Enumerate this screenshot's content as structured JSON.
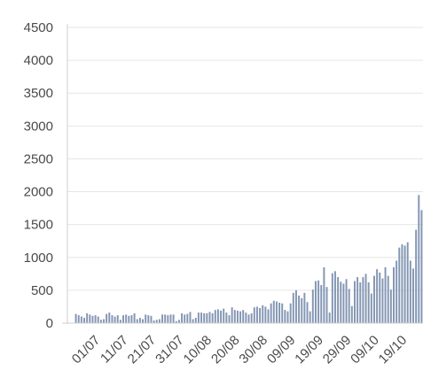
{
  "chart_data": {
    "type": "bar",
    "title": "",
    "xlabel": "",
    "ylabel": "",
    "ylim": [
      0,
      4500
    ],
    "yticks": [
      0,
      500,
      1000,
      1500,
      2000,
      2500,
      3000,
      3500,
      4000,
      4500
    ],
    "grid": "horizontal",
    "legend": "none",
    "bar_color": "#8396b3",
    "start_date": "2020-06-24",
    "xtick_labels": [
      "01/07",
      "11/07",
      "21/07",
      "31/07",
      "10/08",
      "20/08",
      "30/08",
      "09/09",
      "19/09",
      "29/09",
      "09/10",
      "19/10"
    ],
    "series": [
      {
        "values": [
          140,
          120,
          100,
          80,
          150,
          130,
          110,
          120,
          100,
          50,
          60,
          140,
          160,
          120,
          100,
          120,
          50,
          120,
          130,
          110,
          120,
          150,
          60,
          80,
          60,
          130,
          120,
          110,
          40,
          50,
          60,
          130,
          130,
          120,
          130,
          130,
          30,
          50,
          150,
          130,
          140,
          170,
          60,
          80,
          160,
          160,
          150,
          150,
          170,
          150,
          200,
          210,
          190,
          220,
          160,
          120,
          240,
          200,
          190,
          180,
          200,
          160,
          130,
          150,
          240,
          250,
          230,
          270,
          250,
          210,
          300,
          340,
          330,
          310,
          300,
          200,
          180,
          300,
          460,
          500,
          420,
          380,
          460,
          320,
          180,
          510,
          640,
          650,
          580,
          850,
          550,
          160,
          760,
          790,
          700,
          630,
          600,
          670,
          520,
          260,
          640,
          700,
          620,
          700,
          750,
          620,
          450,
          720,
          820,
          770,
          680,
          850,
          720,
          510,
          850,
          950,
          1150,
          1200,
          1180,
          1230,
          950,
          830,
          1420,
          1950,
          1720
        ]
      }
    ]
  }
}
